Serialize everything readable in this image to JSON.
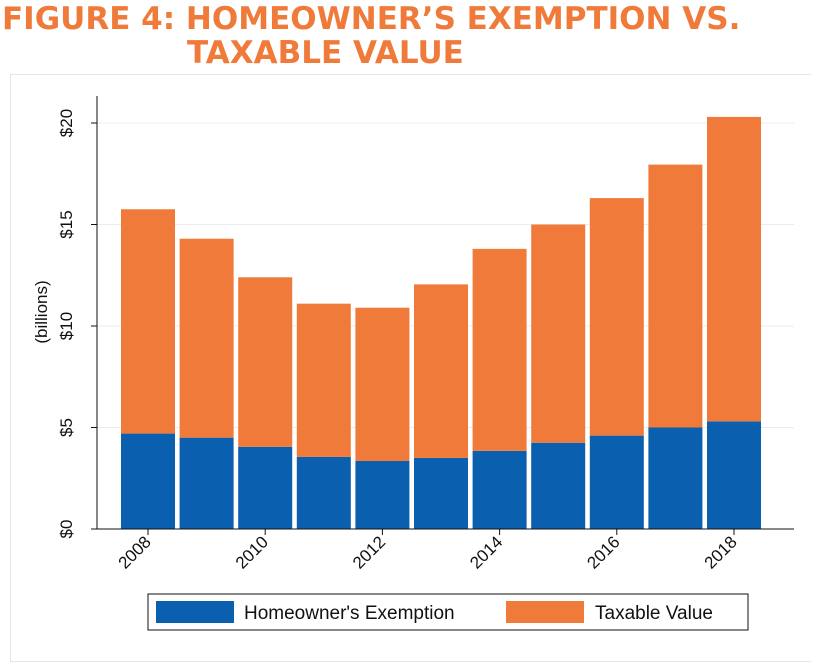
{
  "title": {
    "line1": "FIGURE 4: HOMEOWNER’S EXEMPTION VS.",
    "line2": "TAXABLE VALUE"
  },
  "colors": {
    "title": "#f07a3a",
    "exemption": "#0a5fae",
    "taxable": "#f07a3a"
  },
  "chart_data": {
    "type": "bar",
    "stacked": true,
    "categories": [
      "2008",
      "2009",
      "2010",
      "2011",
      "2012",
      "2013",
      "2014",
      "2015",
      "2016",
      "2017",
      "2018"
    ],
    "x_tick_labels": [
      "2008",
      "2010",
      "2012",
      "2014",
      "2016",
      "2018"
    ],
    "series": [
      {
        "name": "Homeowner's Exemption",
        "values": [
          4.7,
          4.5,
          4.05,
          3.55,
          3.35,
          3.5,
          3.85,
          4.25,
          4.6,
          5.0,
          5.3
        ]
      },
      {
        "name": "Taxable Value",
        "values": [
          11.05,
          9.8,
          8.35,
          7.55,
          7.55,
          8.55,
          9.95,
          10.75,
          11.7,
          12.95,
          15.0
        ]
      }
    ],
    "ylabel": "(billions)",
    "y_tick_labels": [
      "$0",
      "$5",
      "$10",
      "$15",
      "$20"
    ],
    "y_ticks": [
      0,
      5,
      10,
      15,
      20
    ],
    "ylim": [
      0,
      21.2
    ],
    "grid": true,
    "legend_position": "bottom"
  }
}
